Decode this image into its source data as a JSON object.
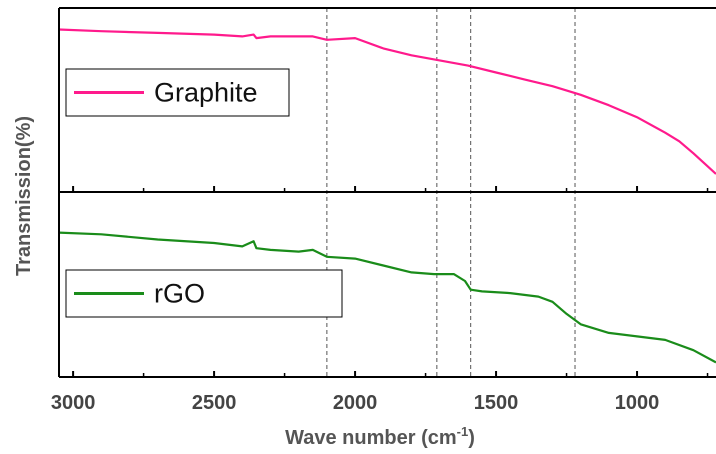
{
  "chart_data": {
    "type": "line",
    "xlabel_main": "Wave number (cm",
    "xlabel_sup": "-1",
    "xlabel_close": ")",
    "ylabel": "Transmission(%)",
    "xlim": [
      3050,
      720
    ],
    "x_reversed": true,
    "x_ticks": [
      3000,
      2500,
      2000,
      1500,
      1000
    ],
    "x_tick_labels": [
      "3000",
      "2500",
      "2000",
      "1500",
      "1000"
    ],
    "y_ticks_labeled": false,
    "vertical_reference_lines": [
      2100,
      1710,
      1590,
      1220
    ],
    "reference_line_style": "dashed",
    "panels": [
      {
        "legend": "Graphite",
        "legend_position": "left",
        "color": "#ff1a8c",
        "series": {
          "name": "Graphite",
          "x": [
            3050,
            2900,
            2700,
            2500,
            2400,
            2360,
            2350,
            2300,
            2200,
            2150,
            2100,
            2000,
            1900,
            1800,
            1700,
            1600,
            1500,
            1400,
            1300,
            1200,
            1100,
            1000,
            900,
            850,
            800,
            720
          ],
          "y": [
            0.91,
            0.9,
            0.89,
            0.88,
            0.87,
            0.88,
            0.86,
            0.87,
            0.87,
            0.87,
            0.85,
            0.86,
            0.8,
            0.76,
            0.73,
            0.7,
            0.66,
            0.62,
            0.58,
            0.53,
            0.47,
            0.4,
            0.31,
            0.26,
            0.19,
            0.07
          ]
        }
      },
      {
        "legend": "rGO",
        "legend_position": "left",
        "color": "#1a8c1a",
        "series": {
          "name": "rGO",
          "x": [
            3050,
            2900,
            2700,
            2500,
            2400,
            2360,
            2350,
            2300,
            2200,
            2150,
            2100,
            2000,
            1900,
            1800,
            1720,
            1650,
            1610,
            1590,
            1550,
            1450,
            1350,
            1300,
            1250,
            1200,
            1100,
            1000,
            900,
            800,
            720
          ],
          "y": [
            0.8,
            0.79,
            0.76,
            0.74,
            0.72,
            0.75,
            0.71,
            0.7,
            0.69,
            0.7,
            0.66,
            0.65,
            0.61,
            0.57,
            0.56,
            0.56,
            0.52,
            0.47,
            0.46,
            0.45,
            0.43,
            0.4,
            0.33,
            0.27,
            0.22,
            0.2,
            0.18,
            0.12,
            0.05
          ]
        }
      }
    ]
  }
}
